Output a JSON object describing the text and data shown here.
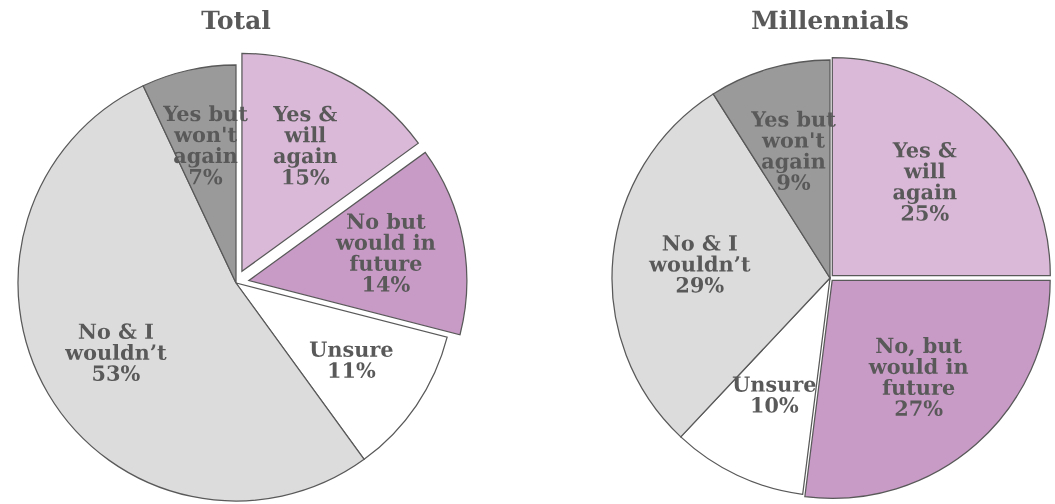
{
  "chart_data": [
    {
      "type": "pie",
      "title": "Total",
      "categories": [
        "Yes &\nwill\nagain",
        "No but\nwould in\nfuture",
        "Unsure",
        "No & I\nwouldn’t",
        "Yes but\nwon't\nagain"
      ],
      "values": [
        15,
        14,
        11,
        53,
        7
      ],
      "value_labels": [
        "15%",
        "14%",
        "11%",
        "53%",
        "7%"
      ],
      "colors": [
        "#dab8d8",
        "#c89ac6",
        "#ffffff",
        "#dcdcdc",
        "#9a9a9a"
      ]
    },
    {
      "type": "pie",
      "title": "Millennials",
      "categories": [
        "Yes &\nwill\nagain",
        "No, but\nwould in\nfuture",
        "Unsure",
        "No & I\nwouldn’t",
        "Yes but\nwon't\nagain"
      ],
      "values": [
        25,
        27,
        10,
        29,
        9
      ],
      "value_labels": [
        "25%",
        "27%",
        "10%",
        "29%",
        "9%"
      ],
      "colors": [
        "#dab8d8",
        "#c89ac6",
        "#ffffff",
        "#dcdcdc",
        "#9a9a9a"
      ]
    }
  ]
}
